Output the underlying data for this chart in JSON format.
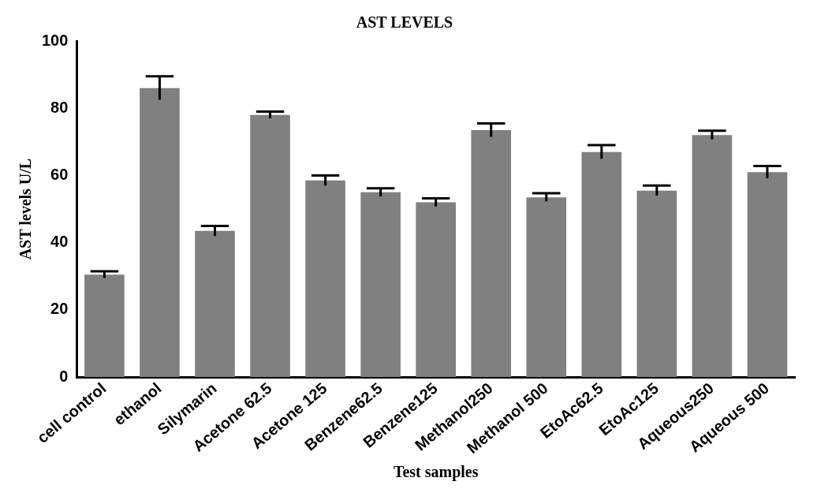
{
  "chart_data": {
    "type": "bar",
    "title": "AST LEVELS",
    "xlabel": "Test samples",
    "ylabel": "AST levels U/L",
    "categories": [
      "cell control",
      "ethanol",
      "Silymarin",
      "Acetone 62.5",
      "Acetone 125",
      "Benzene62.5",
      "Benzene125",
      "Methanol250",
      "Methanol 500",
      "EtoAc62.5",
      "EtoAc125",
      "Aqueous250",
      "Aqueous 500"
    ],
    "values": [
      30.5,
      86,
      43.5,
      78,
      58.5,
      55,
      52,
      73.5,
      53.5,
      67,
      55.5,
      72,
      61
    ],
    "errors": [
      1,
      3.5,
      1.5,
      1,
      1.5,
      1.2,
      1.2,
      2,
      1.2,
      2,
      1.5,
      1.3,
      1.8
    ],
    "color": "#808080",
    "ylim": [
      0,
      100
    ],
    "yticks": [
      0,
      20,
      40,
      60,
      80,
      100
    ],
    "grid": false,
    "legend": false
  }
}
